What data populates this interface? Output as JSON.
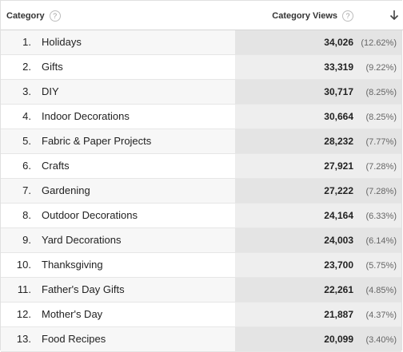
{
  "header": {
    "category_label": "Category",
    "views_label": "Category Views",
    "help_glyph": "?",
    "sort_icon": "arrow-down-icon"
  },
  "rows": [
    {
      "num": "1.",
      "label": "Holidays",
      "value": "34,026",
      "percent": "(12.62%)"
    },
    {
      "num": "2.",
      "label": "Gifts",
      "value": "33,319",
      "percent": "(9.22%)"
    },
    {
      "num": "3.",
      "label": "DIY",
      "value": "30,717",
      "percent": "(8.25%)"
    },
    {
      "num": "4.",
      "label": "Indoor Decorations",
      "value": "30,664",
      "percent": "(8.25%)"
    },
    {
      "num": "5.",
      "label": "Fabric & Paper Projects",
      "value": "28,232",
      "percent": "(7.77%)"
    },
    {
      "num": "6.",
      "label": "Crafts",
      "value": "27,921",
      "percent": "(7.28%)"
    },
    {
      "num": "7.",
      "label": "Gardening",
      "value": "27,222",
      "percent": "(7.28%)"
    },
    {
      "num": "8.",
      "label": "Outdoor Decorations",
      "value": "24,164",
      "percent": "(6.33%)"
    },
    {
      "num": "9.",
      "label": "Yard Decorations",
      "value": "24,003",
      "percent": "(6.14%)"
    },
    {
      "num": "10.",
      "label": "Thanksgiving",
      "value": "23,700",
      "percent": "(5.75%)"
    },
    {
      "num": "11.",
      "label": "Father's Day Gifts",
      "value": "22,261",
      "percent": "(4.85%)"
    },
    {
      "num": "12.",
      "label": "Mother's Day",
      "value": "21,887",
      "percent": "(4.37%)"
    },
    {
      "num": "13.",
      "label": "Food Recipes",
      "value": "20,099",
      "percent": "(3.40%)"
    }
  ]
}
